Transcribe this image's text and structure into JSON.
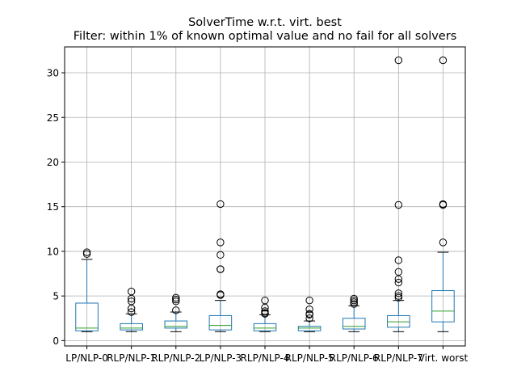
{
  "chart_data": {
    "type": "box",
    "title": "SolverTime w.r.t. virt. best",
    "subtitle": "Filter: within 1% of known optimal value and no fail for all solvers",
    "xlabel": "",
    "ylabel": "",
    "ylim": [
      -0.6,
      32.9
    ],
    "yticks": [
      0,
      5,
      10,
      15,
      20,
      25,
      30
    ],
    "grid": true,
    "colors": {
      "box": "#1f77b4",
      "median": "#2ca02c",
      "outlier": "#000000",
      "grid": "#b0b0b0"
    },
    "categories": [
      "LP/NLP-0",
      "LP/NLP-1",
      "LP/NLP-2",
      "LP/NLP-3",
      "LP/NLP-4",
      "LP/NLP-5",
      "LP/NLP-6",
      "LP/NLP-7",
      "virt. worst"
    ],
    "category_labels_display": [
      "LP/NLP-0",
      "RLP/NLP-1",
      "RLP/NLP-2",
      "LP/NLP-3",
      "RLP/NLP-4",
      "RLP/NLP-5",
      "RLP/NLP-6",
      "RLP/NLP-7",
      "Virt. worst"
    ],
    "boxes": [
      {
        "whisker_low": 1.0,
        "q1": 1.1,
        "median": 1.4,
        "q3": 4.2,
        "whisker_high": 9.1,
        "outliers": [
          9.7,
          9.9
        ]
      },
      {
        "whisker_low": 1.0,
        "q1": 1.2,
        "median": 1.4,
        "q3": 1.9,
        "whisker_high": 3.0,
        "outliers": [
          3.2,
          3.6,
          4.4,
          4.7,
          5.5
        ]
      },
      {
        "whisker_low": 1.0,
        "q1": 1.4,
        "median": 1.6,
        "q3": 2.2,
        "whisker_high": 3.2,
        "outliers": [
          3.4,
          4.4,
          4.6,
          4.8
        ]
      },
      {
        "whisker_low": 1.0,
        "q1": 1.2,
        "median": 1.7,
        "q3": 2.8,
        "whisker_high": 4.5,
        "outliers": [
          5.1,
          5.2,
          8.0,
          8.0,
          9.6,
          11.0,
          15.3
        ]
      },
      {
        "whisker_low": 1.0,
        "q1": 1.1,
        "median": 1.4,
        "q3": 1.9,
        "whisker_high": 2.9,
        "outliers": [
          3.0,
          3.1,
          3.3,
          3.7,
          4.5
        ]
      },
      {
        "whisker_low": 1.0,
        "q1": 1.1,
        "median": 1.4,
        "q3": 1.6,
        "whisker_high": 2.2,
        "outliers": [
          2.5,
          2.9,
          3.0,
          3.5,
          4.5
        ]
      },
      {
        "whisker_low": 1.0,
        "q1": 1.3,
        "median": 1.6,
        "q3": 2.5,
        "whisker_high": 3.9,
        "outliers": [
          4.1,
          4.3,
          4.5,
          4.7
        ]
      },
      {
        "whisker_low": 1.0,
        "q1": 1.5,
        "median": 2.1,
        "q3": 2.8,
        "whisker_high": 4.5,
        "outliers": [
          4.8,
          5.0,
          5.3,
          6.5,
          6.9,
          7.7,
          9.0,
          15.2,
          31.4
        ]
      },
      {
        "whisker_low": 1.0,
        "q1": 2.1,
        "median": 3.3,
        "q3": 5.6,
        "whisker_high": 9.9,
        "outliers": [
          11.0,
          15.2,
          15.3,
          31.4
        ]
      }
    ]
  }
}
